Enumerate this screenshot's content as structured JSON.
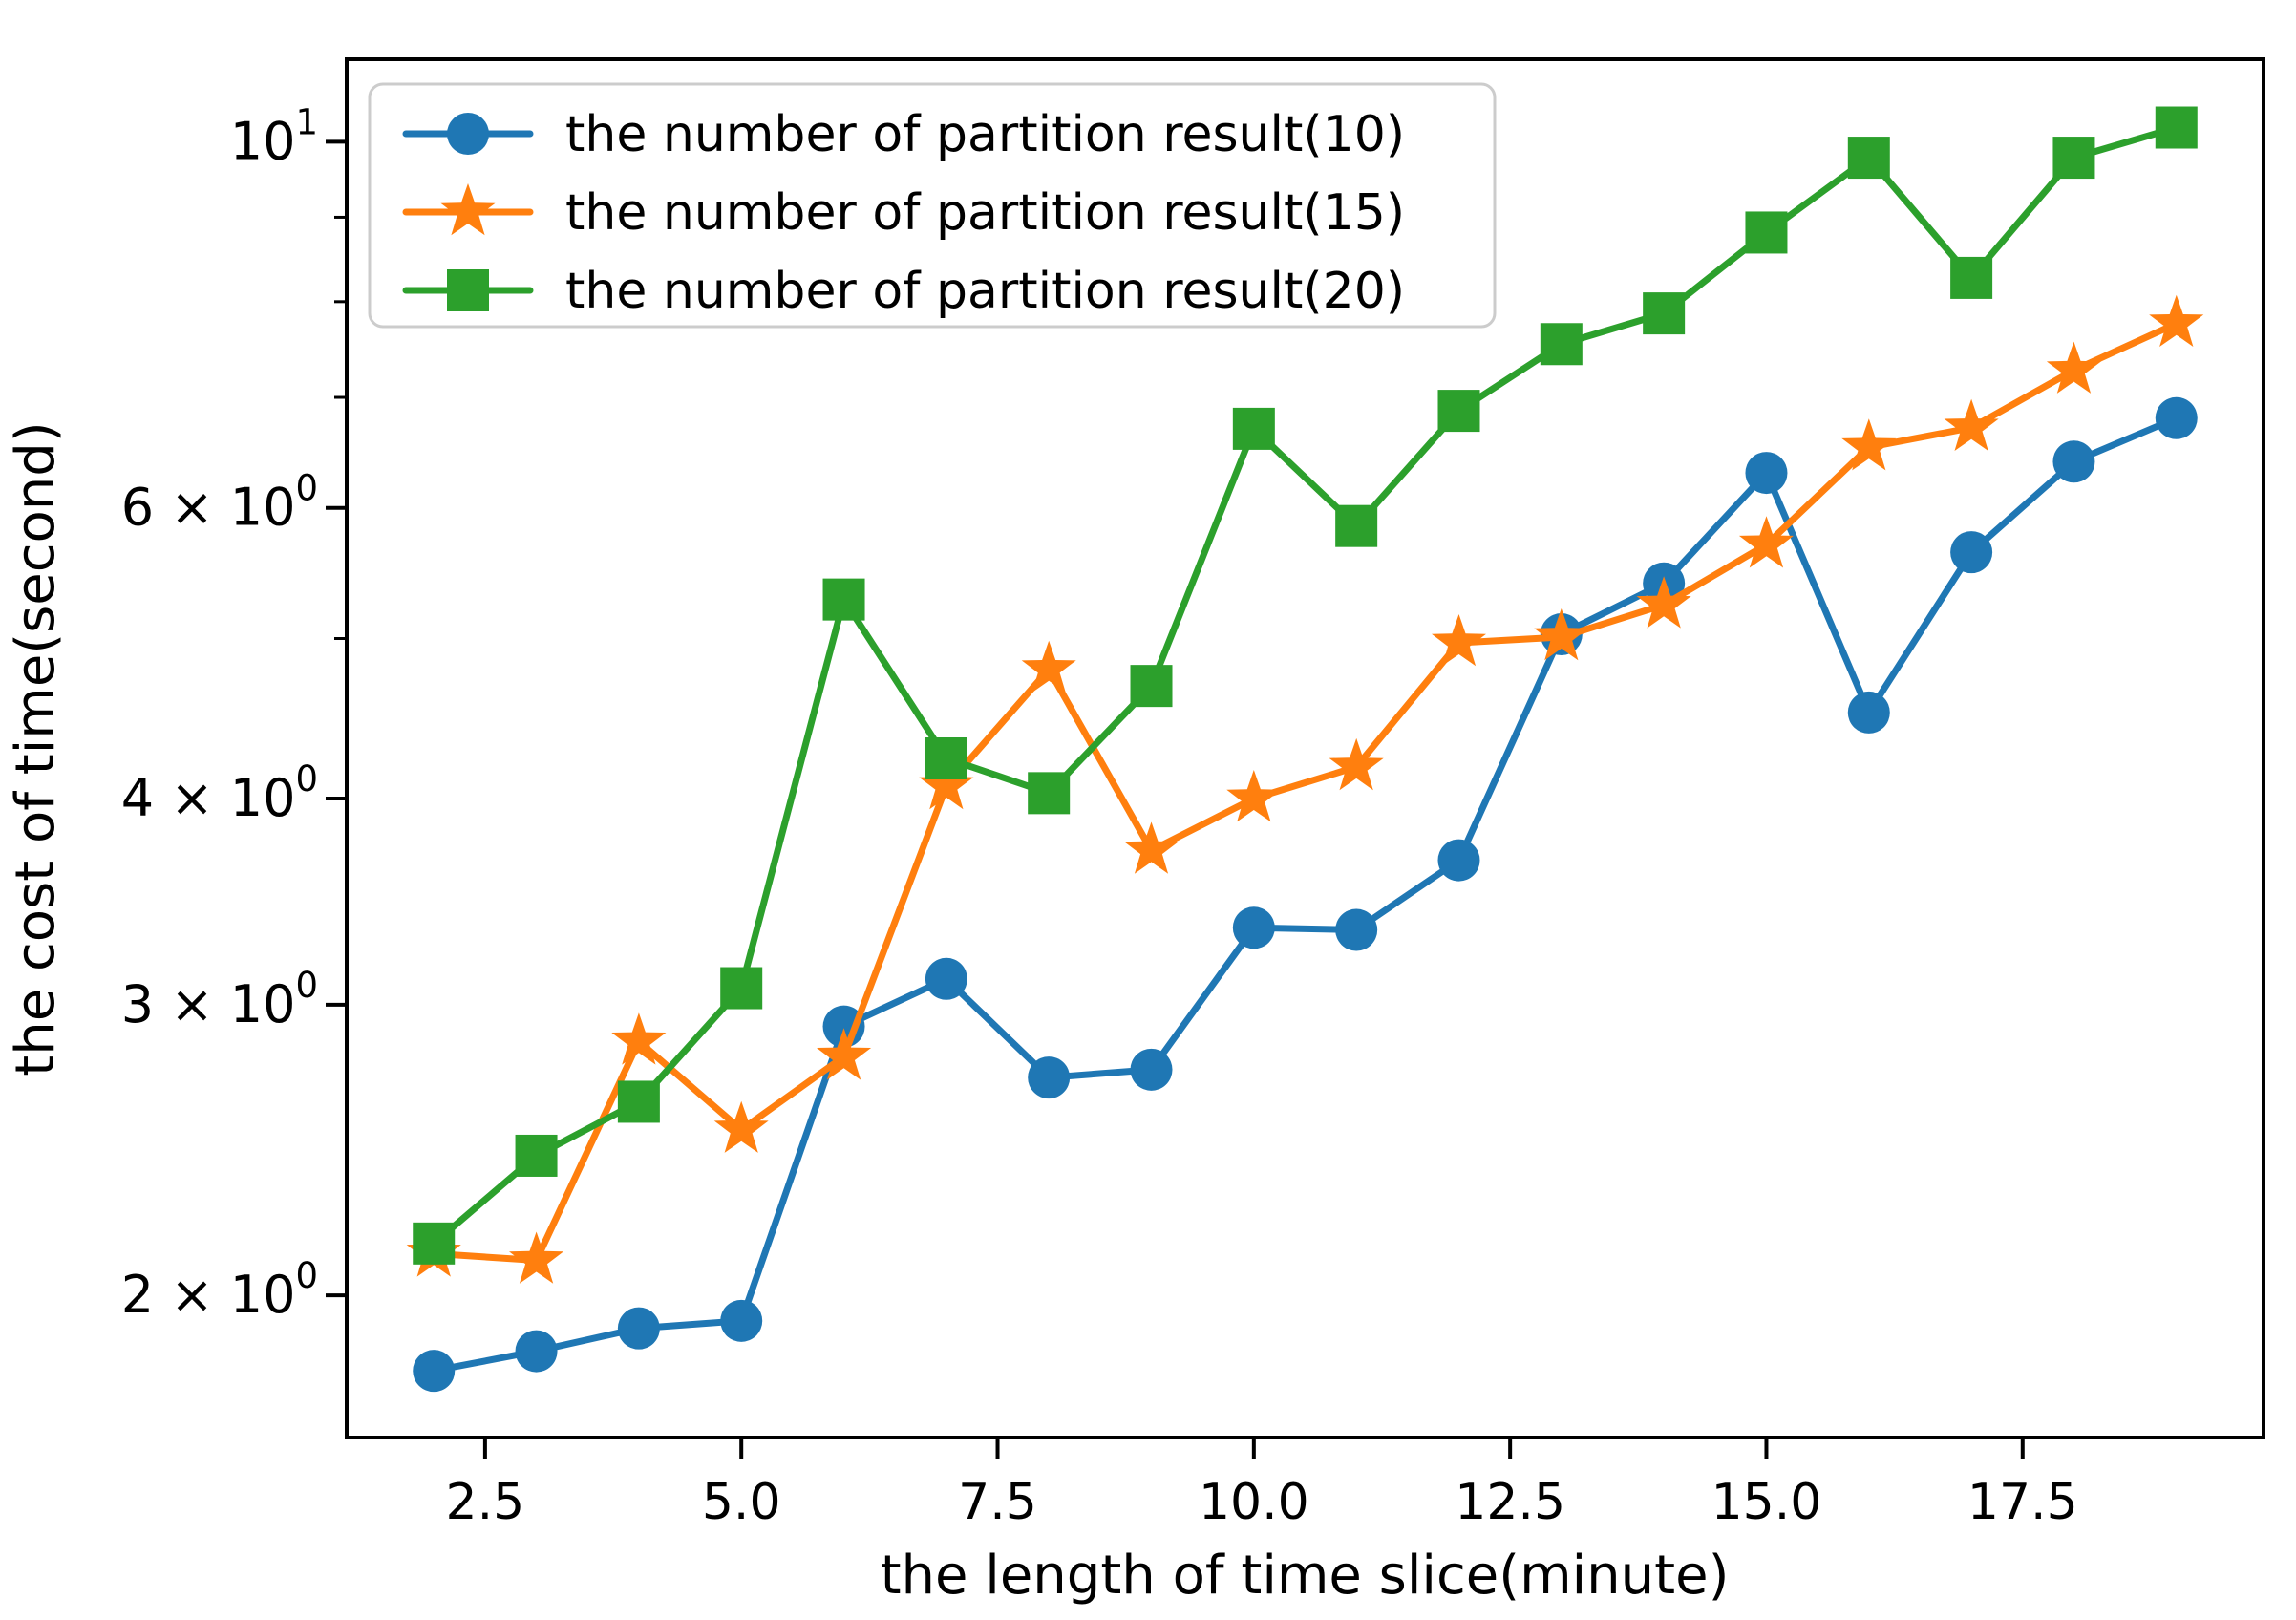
{
  "chart_data": {
    "type": "line",
    "title": "",
    "xlabel": "the length of time slice(minute)",
    "ylabel": "the cost of time(second)",
    "yscale": "log",
    "grid": false,
    "legend_position": "upper left",
    "x": [
      2,
      3,
      4,
      5,
      6,
      7,
      8,
      9,
      10,
      11,
      12,
      13,
      14,
      15,
      16,
      17,
      18,
      19
    ],
    "series": [
      {
        "name": "the number of partition result(10)",
        "color": "#1f77b4",
        "marker": "circle",
        "values": [
          1.8,
          1.85,
          1.91,
          1.93,
          2.91,
          3.11,
          2.71,
          2.74,
          3.34,
          3.33,
          3.67,
          5.03,
          5.4,
          6.3,
          4.51,
          5.64,
          6.4,
          6.8
        ]
      },
      {
        "name": "the number of partition result(15)",
        "color": "#ff7f0e",
        "marker": "star",
        "values": [
          2.12,
          2.1,
          2.85,
          2.52,
          2.79,
          4.07,
          4.79,
          3.72,
          4.0,
          4.18,
          4.97,
          5.01,
          5.24,
          5.7,
          6.53,
          6.71,
          7.27,
          7.76
        ]
      },
      {
        "name": "the number of partition result(20)",
        "color": "#2ca02c",
        "marker": "square",
        "values": [
          2.15,
          2.43,
          2.62,
          3.07,
          5.28,
          4.23,
          4.03,
          4.68,
          6.7,
          5.85,
          6.87,
          7.54,
          7.87,
          8.81,
          9.78,
          8.27,
          9.78,
          10.2
        ]
      }
    ],
    "xlim": [
      1.15,
      19.85
    ],
    "ylim": [
      1.64,
      11.22
    ],
    "x_ticks": [
      2.5,
      5.0,
      7.5,
      10.0,
      12.5,
      15.0,
      17.5
    ],
    "x_tick_labels": [
      "2.5",
      "5.0",
      "7.5",
      "10.0",
      "12.5",
      "15.0",
      "17.5"
    ],
    "y_major_ticks": [
      {
        "value": 10,
        "base": "10",
        "exp": "1"
      },
      {
        "value": 6,
        "base": "6 × 10",
        "exp": "0"
      },
      {
        "value": 4,
        "base": "4 × 10",
        "exp": "0"
      },
      {
        "value": 3,
        "base": "3 × 10",
        "exp": "0"
      },
      {
        "value": 2,
        "base": "2 × 10",
        "exp": "0"
      }
    ],
    "y_minor_ticks": [
      9,
      8,
      7,
      5
    ]
  },
  "colors": {
    "spine": "#000000",
    "legend_border": "#cccccc",
    "background": "#ffffff"
  }
}
